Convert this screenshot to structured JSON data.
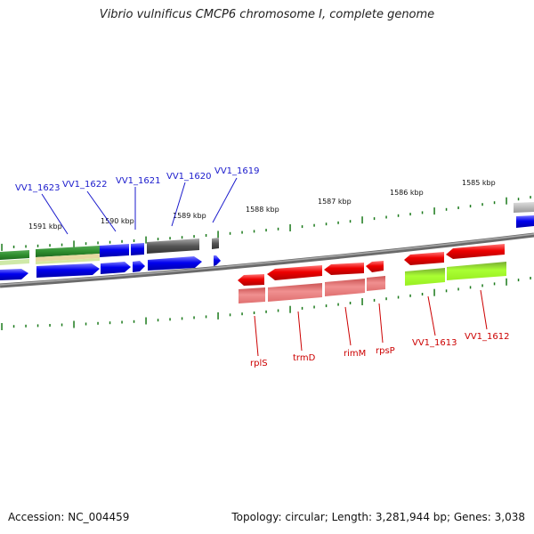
{
  "title": "Vibrio vulnificus CMCP6 chromosome I, complete genome",
  "footer": {
    "accession": "Accession: NC_004459",
    "summary": "Topology: circular; Length: 3,281,944 bp; Genes: 3,038"
  },
  "scale": {
    "labels": [
      "1591 kbp",
      "1590 kbp",
      "1589 kbp",
      "1588 kbp",
      "1587 kbp",
      "1586 kbp",
      "1585 kbp"
    ]
  },
  "gene_labels_top": [
    "VV1_1623",
    "VV1_1622",
    "VV1_1621",
    "VV1_1620",
    "VV1_1619"
  ],
  "gene_labels_bottom": [
    "rplS",
    "trmD",
    "rimM",
    "rpsP",
    "VV1_1613",
    "VV1_1612"
  ],
  "colors": {
    "forward_cds": "#0000ee",
    "reverse_cds": "#ee0000",
    "gene_forward": "#555555",
    "gene_reverse": "#e77777",
    "green_feature": "#2f8f2f",
    "yellowgreen_feature": "#aaff33",
    "backbone": "#777777",
    "tick": "#1b7a1b"
  }
}
